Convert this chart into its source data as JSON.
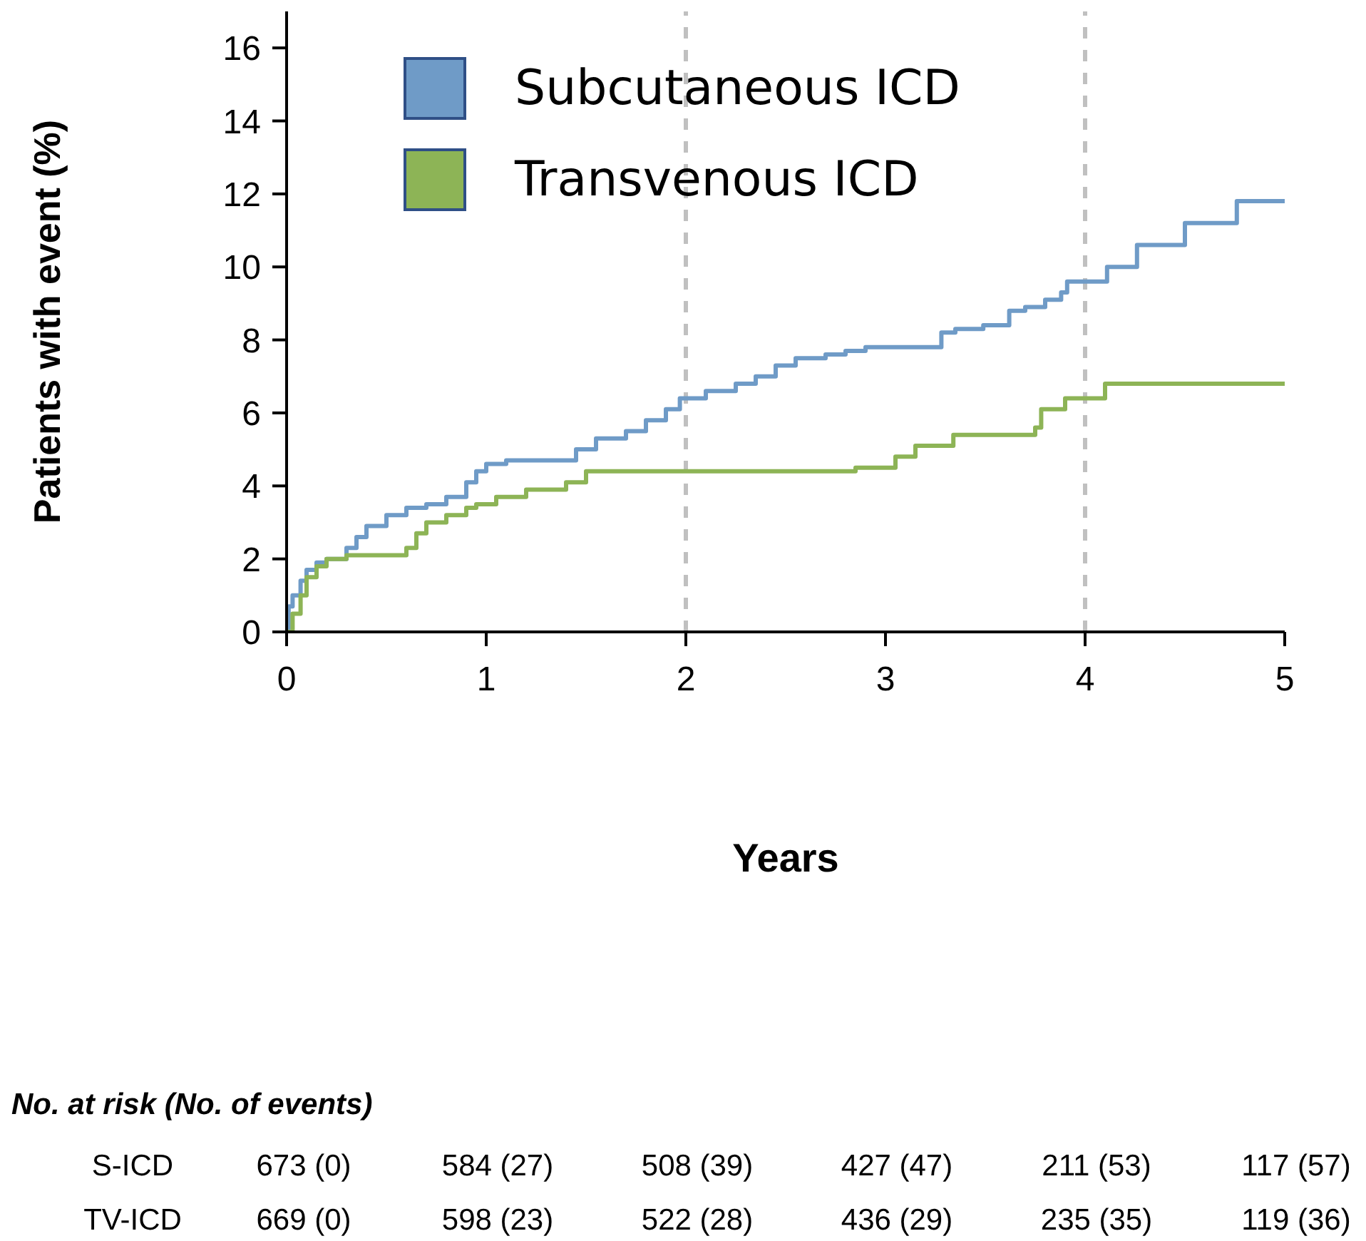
{
  "chart_data": {
    "type": "step",
    "xlabel": "Years",
    "ylabel": "Patients with event (%)",
    "xlim": [
      0,
      5
    ],
    "xticks": [
      0,
      1,
      2,
      3,
      4,
      5
    ],
    "ylim": [
      0,
      17
    ],
    "yticks": [
      0,
      2,
      4,
      6,
      8,
      10,
      12,
      14,
      16
    ],
    "grid": false,
    "legend": "top left",
    "marker": "none",
    "line_style": "solid",
    "ref_lines": [
      {
        "axis": "x",
        "value": 2,
        "color": "#c0c0c0",
        "line_style": "dashed"
      },
      {
        "axis": "x",
        "value": 4,
        "color": "#c0c0c0",
        "line_style": "dashed"
      }
    ],
    "series": [
      {
        "name": "Subcutaneous ICD",
        "color": "#6f9bc7",
        "x": [
          0,
          0.01,
          0.03,
          0.07,
          0.1,
          0.15,
          0.2,
          0.3,
          0.35,
          0.4,
          0.5,
          0.6,
          0.7,
          0.8,
          0.9,
          0.95,
          1.0,
          1.1,
          1.45,
          1.55,
          1.7,
          1.8,
          1.9,
          1.97,
          2.1,
          2.25,
          2.35,
          2.45,
          2.55,
          2.7,
          2.8,
          2.9,
          3.28,
          3.35,
          3.49,
          3.62,
          3.7,
          3.8,
          3.88,
          3.91,
          4.11,
          4.26,
          4.5,
          4.76,
          5
        ],
        "values": [
          0,
          0.7,
          1.0,
          1.4,
          1.7,
          1.9,
          2.0,
          2.3,
          2.6,
          2.9,
          3.2,
          3.4,
          3.5,
          3.7,
          4.1,
          4.4,
          4.6,
          4.7,
          5.0,
          5.3,
          5.5,
          5.8,
          6.1,
          6.4,
          6.6,
          6.8,
          7.0,
          7.3,
          7.5,
          7.6,
          7.7,
          7.8,
          8.2,
          8.3,
          8.4,
          8.8,
          8.9,
          9.1,
          9.3,
          9.6,
          10.0,
          10.6,
          11.2,
          11.8,
          11.8
        ]
      },
      {
        "name": "Transvenous ICD",
        "color": "#8db456",
        "x": [
          0,
          0.03,
          0.07,
          0.1,
          0.15,
          0.2,
          0.3,
          0.6,
          0.65,
          0.7,
          0.8,
          0.9,
          0.95,
          1.05,
          1.2,
          1.4,
          1.5,
          2.85,
          3.05,
          3.15,
          3.34,
          3.75,
          3.78,
          3.9,
          4.1,
          5
        ],
        "values": [
          0,
          0.5,
          1.0,
          1.5,
          1.8,
          2.0,
          2.1,
          2.3,
          2.7,
          3.0,
          3.2,
          3.4,
          3.5,
          3.7,
          3.9,
          4.1,
          4.4,
          4.5,
          4.8,
          5.1,
          5.4,
          5.6,
          6.1,
          6.4,
          6.8,
          6.8
        ]
      }
    ],
    "annotations": [
      "No. at risk (No. of events)",
      "S-ICD",
      "673 (0)",
      "584 (27)",
      "508 (39)",
      "427 (47)",
      "211 (53)",
      "117 (57)",
      "TV-ICD",
      "669 (0)",
      "598 (23)",
      "522 (28)",
      "436 (29)",
      "235 (35)",
      "119 (36)"
    ]
  }
}
